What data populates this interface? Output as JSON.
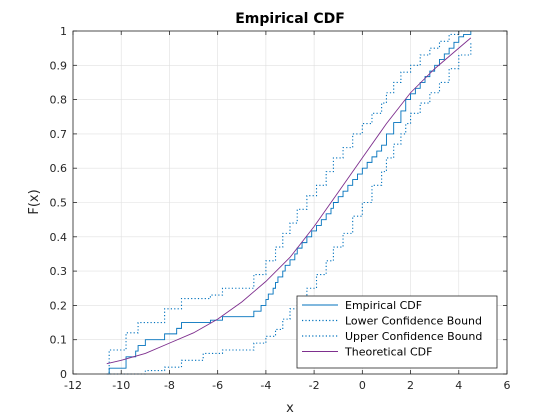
{
  "chart_data": {
    "type": "line",
    "title": "Empirical CDF",
    "xlabel": "x",
    "ylabel": "F(x)",
    "xlim": [
      -12,
      6
    ],
    "ylim": [
      0,
      1
    ],
    "xticks": [
      -12,
      -10,
      -8,
      -6,
      -4,
      -2,
      0,
      2,
      4,
      6
    ],
    "yticks": [
      0,
      0.1,
      0.2,
      0.3,
      0.4,
      0.5,
      0.6,
      0.7,
      0.8,
      0.9,
      1
    ],
    "ytick_labels": [
      "0",
      "0.1",
      "0.2",
      "0.3",
      "0.4",
      "0.5",
      "0.6",
      "0.7",
      "0.8",
      "0.9",
      "1"
    ],
    "grid": true,
    "legend_position": "bottom-right",
    "series": [
      {
        "name": "Empirical CDF",
        "style": "step",
        "color": "#0072BD",
        "x": [
          -10.6,
          -10.5,
          -9.8,
          -9.4,
          -9.3,
          -9.0,
          -8.2,
          -7.7,
          -7.5,
          -7.3,
          -6.6,
          -6.3,
          -5.8,
          -4.5,
          -4.2,
          -4.0,
          -3.9,
          -3.7,
          -3.6,
          -3.5,
          -3.3,
          -3.2,
          -3.0,
          -2.8,
          -2.7,
          -2.5,
          -2.3,
          -2.1,
          -1.9,
          -1.7,
          -1.5,
          -1.3,
          -1.2,
          -1.0,
          -0.8,
          -0.6,
          -0.4,
          -0.2,
          0.0,
          0.2,
          0.4,
          0.6,
          0.8,
          1.0,
          1.3,
          1.6,
          1.8,
          2.0,
          2.2,
          2.4,
          2.6,
          2.8,
          3.0,
          3.2,
          3.4,
          3.6,
          3.8,
          4.0,
          4.2,
          4.5
        ],
        "y": [
          0,
          0.017,
          0.05,
          0.067,
          0.083,
          0.1,
          0.117,
          0.133,
          0.15,
          0.15,
          0.15,
          0.157,
          0.167,
          0.183,
          0.2,
          0.217,
          0.233,
          0.25,
          0.267,
          0.283,
          0.3,
          0.317,
          0.333,
          0.35,
          0.367,
          0.383,
          0.4,
          0.417,
          0.433,
          0.45,
          0.467,
          0.483,
          0.5,
          0.517,
          0.533,
          0.55,
          0.567,
          0.583,
          0.6,
          0.617,
          0.633,
          0.65,
          0.667,
          0.7,
          0.733,
          0.767,
          0.8,
          0.817,
          0.833,
          0.85,
          0.867,
          0.883,
          0.9,
          0.917,
          0.933,
          0.95,
          0.967,
          0.983,
          0.99,
          1.0
        ]
      },
      {
        "name": "Lower Confidence Bound",
        "style": "step-dotted",
        "color": "#0072BD",
        "x": [
          -10.6,
          -9.3,
          -9.0,
          -8.2,
          -7.5,
          -6.6,
          -5.8,
          -4.5,
          -4.0,
          -3.6,
          -3.3,
          -3.0,
          -2.7,
          -2.3,
          -1.9,
          -1.5,
          -1.2,
          -0.8,
          -0.4,
          0.0,
          0.4,
          0.8,
          1.0,
          1.3,
          1.6,
          1.8,
          2.0,
          2.4,
          2.8,
          3.2,
          3.6,
          4.0,
          4.5
        ],
        "y": [
          0,
          0,
          0.01,
          0.02,
          0.04,
          0.06,
          0.07,
          0.09,
          0.11,
          0.13,
          0.16,
          0.19,
          0.22,
          0.25,
          0.29,
          0.33,
          0.37,
          0.41,
          0.46,
          0.5,
          0.55,
          0.59,
          0.63,
          0.67,
          0.7,
          0.73,
          0.76,
          0.79,
          0.82,
          0.85,
          0.89,
          0.93,
          0.97
        ]
      },
      {
        "name": "Upper Confidence Bound",
        "style": "step-dotted",
        "color": "#0072BD",
        "x": [
          -10.6,
          -10.5,
          -9.8,
          -9.3,
          -8.2,
          -7.5,
          -6.3,
          -5.8,
          -4.5,
          -4.0,
          -3.6,
          -3.3,
          -3.0,
          -2.7,
          -2.3,
          -1.9,
          -1.5,
          -1.2,
          -0.8,
          -0.4,
          0.0,
          0.4,
          0.8,
          1.0,
          1.3,
          1.6,
          2.0,
          2.4,
          2.8,
          3.2,
          3.6,
          4.0,
          4.5
        ],
        "y": [
          0,
          0.07,
          0.12,
          0.15,
          0.19,
          0.22,
          0.23,
          0.25,
          0.29,
          0.33,
          0.37,
          0.41,
          0.44,
          0.48,
          0.52,
          0.55,
          0.59,
          0.63,
          0.66,
          0.7,
          0.73,
          0.76,
          0.79,
          0.82,
          0.85,
          0.88,
          0.9,
          0.93,
          0.95,
          0.97,
          0.99,
          1.0,
          1.0
        ]
      },
      {
        "name": "Theoretical CDF",
        "style": "line",
        "color": "#7E2F8E",
        "x": [
          -10.6,
          -10,
          -9,
          -8,
          -7,
          -6,
          -5,
          -4,
          -3,
          -2,
          -1,
          0,
          1,
          2,
          3,
          4,
          4.5
        ],
        "y": [
          0.03,
          0.04,
          0.06,
          0.09,
          0.12,
          0.16,
          0.21,
          0.27,
          0.34,
          0.43,
          0.53,
          0.63,
          0.73,
          0.82,
          0.89,
          0.95,
          0.98
        ]
      }
    ]
  }
}
